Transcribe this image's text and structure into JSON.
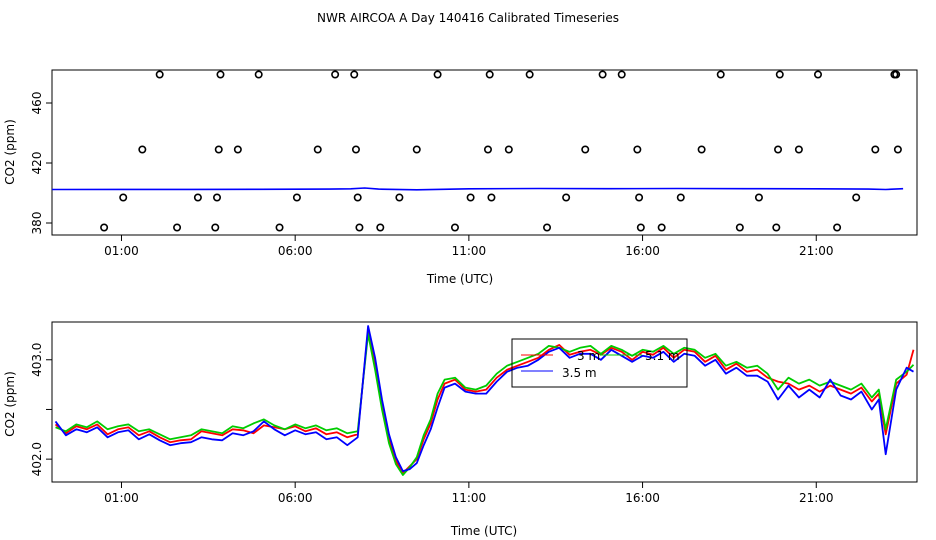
{
  "title": "NWR AIRCOA A  Day 140416  Calibrated Timeseries",
  "chart_data": [
    {
      "type": "scatter",
      "xlabel": "Time (UTC)",
      "ylabel": "CO2 (ppm)",
      "xlim": [
        -1,
        23.9
      ],
      "ylim": [
        372,
        482
      ],
      "xticks": [
        1,
        6,
        11,
        16,
        21
      ],
      "xtick_labels": [
        "01:00",
        "06:00",
        "11:00",
        "16:00",
        "21:00"
      ],
      "yticks": [
        380,
        420,
        460
      ],
      "ytick_labels": [
        "380",
        "420",
        "460"
      ],
      "grid": false,
      "colors": {
        "points": "#000000",
        "series": "#0000ff"
      },
      "points": {
        "x": [
          0.5,
          1.05,
          1.6,
          2.1,
          2.6,
          3.2,
          3.7,
          3.75,
          3.8,
          3.85,
          4.35,
          4.95,
          5.55,
          6.05,
          6.65,
          7.15,
          7.7,
          7.75,
          7.8,
          7.85,
          8.45,
          9.0,
          9.5,
          10.1,
          10.6,
          11.05,
          11.55,
          11.6,
          11.65,
          12.15,
          12.75,
          13.25,
          13.8,
          14.35,
          14.85,
          15.4,
          15.85,
          15.9,
          15.95,
          16.55,
          17.1,
          17.7,
          18.25,
          18.8,
          19.35,
          19.85,
          19.9,
          19.95,
          20.5,
          21.05,
          21.6,
          22.15,
          22.7,
          23.25,
          23.3,
          23.35
        ],
        "y": [
          377,
          397,
          429,
          479,
          377,
          397,
          377,
          397,
          429,
          479,
          429,
          479,
          377,
          397,
          429,
          479,
          479,
          429,
          397,
          377,
          377,
          397,
          429,
          479,
          377,
          397,
          429,
          479,
          397,
          429,
          479,
          377,
          397,
          429,
          479,
          479,
          429,
          397,
          377,
          377,
          397,
          429,
          479,
          377,
          397,
          377,
          429,
          479,
          429,
          479,
          377,
          397,
          429,
          479,
          479,
          429
        ]
      },
      "series": [
        {
          "x": [
            -1,
            1,
            3,
            5,
            7,
            7.6,
            8.0,
            8.4,
            9.5,
            11,
            13,
            15,
            17,
            19,
            21,
            22.5,
            23.0,
            23.5
          ],
          "y": [
            402.3,
            402.4,
            402.4,
            402.5,
            402.6,
            402.8,
            403.3,
            402.6,
            402.1,
            402.8,
            403.0,
            402.9,
            403.0,
            402.9,
            402.8,
            402.6,
            402.3,
            402.9
          ]
        }
      ]
    },
    {
      "type": "line",
      "xlabel": "Time (UTC)",
      "ylabel": "CO2 (ppm)",
      "xlim": [
        -1,
        23.9
      ],
      "ylim": [
        401.77,
        403.38
      ],
      "xticks": [
        1,
        6,
        11,
        16,
        21
      ],
      "xtick_labels": [
        "01:00",
        "06:00",
        "11:00",
        "16:00",
        "21:00"
      ],
      "yticks": [
        402.0,
        402.5,
        403.0
      ],
      "ytick_labels": [
        "402.0",
        "",
        "403.0"
      ],
      "grid": false,
      "legend": {
        "placement": "top-center",
        "entries": [
          "3 m",
          "5.1 m",
          "3.5 m"
        ]
      },
      "series": [
        {
          "color": "#ff0000",
          "x": [
            -0.9,
            -0.6,
            -0.3,
            0.0,
            0.3,
            0.6,
            0.9,
            1.2,
            1.5,
            1.8,
            2.1,
            2.4,
            2.7,
            3.0,
            3.3,
            3.6,
            3.9,
            4.2,
            4.5,
            4.8,
            5.1,
            5.4,
            5.7,
            6.0,
            6.3,
            6.6,
            6.9,
            7.2,
            7.5,
            7.8,
            8.1,
            8.3,
            8.5,
            8.7,
            8.9,
            9.1,
            9.3,
            9.5,
            9.7,
            9.9,
            10.1,
            10.3,
            10.6,
            10.9,
            11.2,
            11.5,
            11.8,
            12.1,
            12.4,
            12.7,
            13.0,
            13.3,
            13.6,
            13.9,
            14.2,
            14.5,
            14.8,
            15.1,
            15.4,
            15.7,
            16.0,
            16.3,
            16.6,
            16.9,
            17.2,
            17.5,
            17.8,
            18.1,
            18.4,
            18.7,
            19.0,
            19.3,
            19.6,
            19.9,
            20.2,
            20.5,
            20.8,
            21.1,
            21.4,
            21.7,
            22.0,
            22.3,
            22.6,
            22.8,
            23.0,
            23.3,
            23.6,
            23.8
          ],
          "y": [
            402.35,
            402.26,
            402.33,
            402.3,
            402.35,
            402.25,
            402.3,
            402.32,
            402.24,
            402.28,
            402.22,
            402.17,
            402.19,
            402.2,
            402.28,
            402.26,
            402.24,
            402.3,
            402.29,
            402.26,
            402.34,
            402.32,
            402.3,
            402.33,
            402.28,
            402.31,
            402.25,
            402.27,
            402.22,
            402.25,
            403.3,
            402.95,
            402.55,
            402.2,
            401.98,
            401.86,
            401.93,
            402.0,
            402.2,
            402.36,
            402.6,
            402.76,
            402.8,
            402.7,
            402.68,
            402.7,
            402.82,
            402.9,
            402.94,
            402.98,
            403.02,
            403.1,
            403.15,
            403.05,
            403.08,
            403.1,
            403.05,
            403.12,
            403.08,
            403.0,
            403.08,
            403.05,
            403.12,
            403.02,
            403.1,
            403.08,
            402.98,
            403.04,
            402.9,
            402.96,
            402.88,
            402.9,
            402.82,
            402.78,
            402.76,
            402.7,
            402.74,
            402.68,
            402.74,
            402.7,
            402.66,
            402.72,
            402.58,
            402.66,
            402.25,
            402.76,
            402.85,
            403.1
          ]
        },
        {
          "color": "#00cc00",
          "x": [
            -0.9,
            -0.6,
            -0.3,
            0.0,
            0.3,
            0.6,
            0.9,
            1.2,
            1.5,
            1.8,
            2.1,
            2.4,
            2.7,
            3.0,
            3.3,
            3.6,
            3.9,
            4.2,
            4.5,
            4.8,
            5.1,
            5.4,
            5.7,
            6.0,
            6.3,
            6.6,
            6.9,
            7.2,
            7.5,
            7.8,
            8.1,
            8.3,
            8.5,
            8.7,
            8.9,
            9.1,
            9.3,
            9.5,
            9.7,
            9.9,
            10.1,
            10.3,
            10.6,
            10.9,
            11.2,
            11.5,
            11.8,
            12.1,
            12.4,
            12.7,
            13.0,
            13.3,
            13.6,
            13.9,
            14.2,
            14.5,
            14.8,
            15.1,
            15.4,
            15.7,
            16.0,
            16.3,
            16.6,
            16.9,
            17.2,
            17.5,
            17.8,
            18.1,
            18.4,
            18.7,
            19.0,
            19.3,
            19.6,
            19.9,
            20.2,
            20.5,
            20.8,
            21.1,
            21.4,
            21.7,
            22.0,
            22.3,
            22.6,
            22.8,
            23.0,
            23.3,
            23.6,
            23.8
          ],
          "y": [
            402.32,
            402.28,
            402.35,
            402.32,
            402.38,
            402.3,
            402.33,
            402.35,
            402.28,
            402.3,
            402.25,
            402.2,
            402.22,
            402.24,
            402.3,
            402.28,
            402.26,
            402.33,
            402.31,
            402.36,
            402.4,
            402.34,
            402.3,
            402.35,
            402.31,
            402.34,
            402.29,
            402.31,
            402.26,
            402.28,
            403.26,
            402.9,
            402.5,
            402.16,
            401.95,
            401.84,
            401.92,
            402.02,
            402.24,
            402.4,
            402.66,
            402.8,
            402.82,
            402.72,
            402.7,
            402.74,
            402.86,
            402.94,
            402.98,
            403.02,
            403.06,
            403.14,
            403.12,
            403.08,
            403.12,
            403.14,
            403.06,
            403.14,
            403.1,
            403.04,
            403.1,
            403.08,
            403.14,
            403.06,
            403.12,
            403.1,
            403.02,
            403.06,
            402.94,
            402.98,
            402.92,
            402.94,
            402.86,
            402.7,
            402.82,
            402.76,
            402.8,
            402.74,
            402.78,
            402.74,
            402.7,
            402.76,
            402.62,
            402.7,
            402.3,
            402.8,
            402.88,
            402.95
          ]
        },
        {
          "color": "#0000ff",
          "x": [
            -0.9,
            -0.6,
            -0.3,
            0.0,
            0.3,
            0.6,
            0.9,
            1.2,
            1.5,
            1.8,
            2.1,
            2.4,
            2.7,
            3.0,
            3.3,
            3.6,
            3.9,
            4.2,
            4.5,
            4.8,
            5.1,
            5.4,
            5.7,
            6.0,
            6.3,
            6.6,
            6.9,
            7.2,
            7.5,
            7.8,
            8.1,
            8.3,
            8.5,
            8.7,
            8.9,
            9.1,
            9.3,
            9.5,
            9.7,
            9.9,
            10.1,
            10.3,
            10.6,
            10.9,
            11.2,
            11.5,
            11.8,
            12.1,
            12.4,
            12.7,
            13.0,
            13.3,
            13.6,
            13.9,
            14.2,
            14.5,
            14.8,
            15.1,
            15.4,
            15.7,
            16.0,
            16.3,
            16.6,
            16.9,
            17.2,
            17.5,
            17.8,
            18.1,
            18.4,
            18.7,
            19.0,
            19.3,
            19.6,
            19.9,
            20.2,
            20.5,
            20.8,
            21.1,
            21.4,
            21.7,
            22.0,
            22.3,
            22.6,
            22.8,
            23.0,
            23.3,
            23.6,
            23.8
          ],
          "y": [
            402.38,
            402.24,
            402.3,
            402.27,
            402.32,
            402.22,
            402.27,
            402.29,
            402.2,
            402.25,
            402.19,
            402.14,
            402.16,
            402.17,
            402.22,
            402.2,
            402.19,
            402.26,
            402.24,
            402.28,
            402.38,
            402.3,
            402.24,
            402.29,
            402.25,
            402.27,
            402.2,
            402.22,
            402.14,
            402.22,
            403.34,
            403.02,
            402.6,
            402.25,
            402.02,
            401.88,
            401.9,
            401.96,
            402.14,
            402.3,
            402.52,
            402.72,
            402.76,
            402.68,
            402.66,
            402.66,
            402.78,
            402.88,
            402.92,
            402.94,
            403.0,
            403.08,
            403.12,
            403.02,
            403.06,
            403.06,
            403.0,
            403.1,
            403.04,
            402.98,
            403.04,
            403.02,
            403.08,
            402.98,
            403.06,
            403.04,
            402.94,
            403.0,
            402.86,
            402.92,
            402.84,
            402.84,
            402.78,
            402.6,
            402.74,
            402.62,
            402.7,
            402.62,
            402.8,
            402.64,
            402.6,
            402.68,
            402.5,
            402.6,
            402.05,
            402.7,
            402.92,
            402.88
          ]
        }
      ]
    }
  ]
}
